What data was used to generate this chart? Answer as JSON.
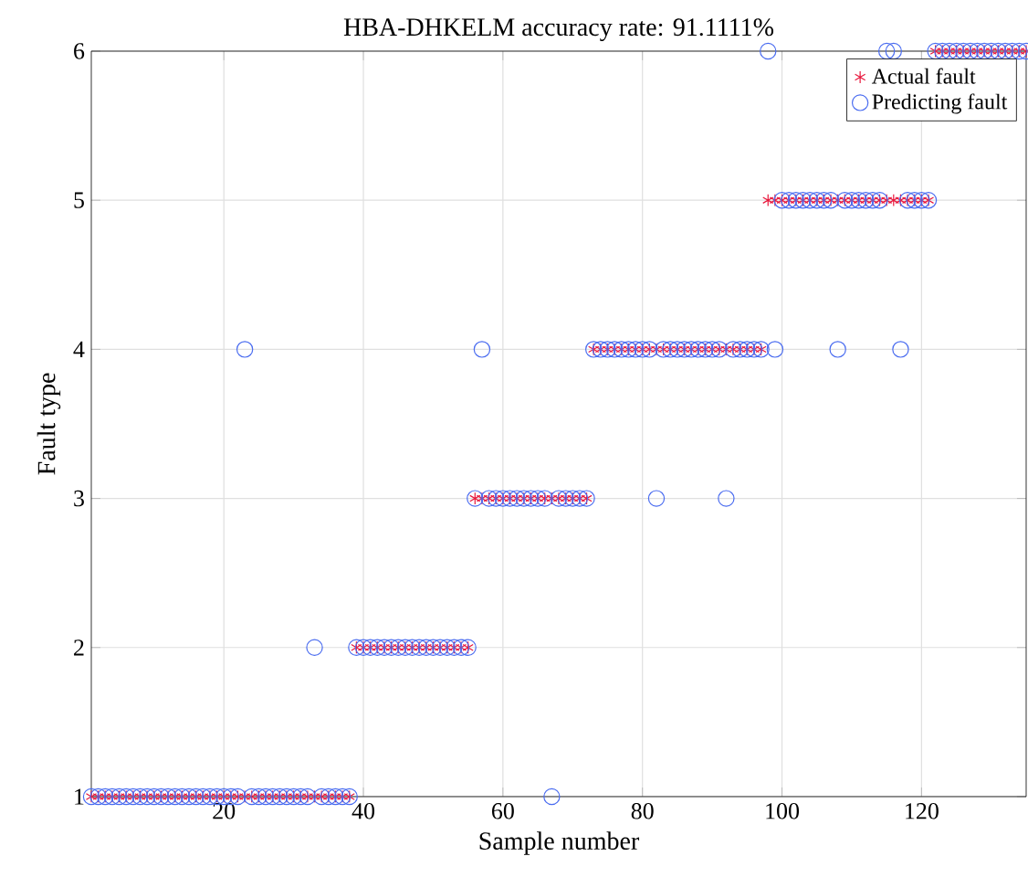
{
  "chart_data": {
    "type": "scatter",
    "title": "HBA-DHKELM  accuracy rate: 91.1111%",
    "xlabel": "Sample number",
    "ylabel": "Fault type",
    "x": [
      1,
      2,
      3,
      4,
      5,
      6,
      7,
      8,
      9,
      10,
      11,
      12,
      13,
      14,
      15,
      16,
      17,
      18,
      19,
      20,
      21,
      22,
      23,
      24,
      25,
      26,
      27,
      28,
      29,
      30,
      31,
      32,
      33,
      34,
      35,
      36,
      37,
      38,
      39,
      40,
      41,
      42,
      43,
      44,
      45,
      46,
      47,
      48,
      49,
      50,
      51,
      52,
      53,
      54,
      55,
      56,
      57,
      58,
      59,
      60,
      61,
      62,
      63,
      64,
      65,
      66,
      67,
      68,
      69,
      70,
      71,
      72,
      73,
      74,
      75,
      76,
      77,
      78,
      79,
      80,
      81,
      82,
      83,
      84,
      85,
      86,
      87,
      88,
      89,
      90,
      91,
      92,
      93,
      94,
      95,
      96,
      97,
      98,
      99,
      100,
      101,
      102,
      103,
      104,
      105,
      106,
      107,
      108,
      109,
      110,
      111,
      112,
      113,
      114,
      115,
      116,
      117,
      118,
      119,
      120,
      121,
      122,
      123,
      124,
      125,
      126,
      127,
      128,
      129,
      130,
      131,
      132,
      133,
      134,
      135
    ],
    "series": [
      {
        "name": "Actual fault",
        "color": "#e8173c",
        "marker": "cross",
        "values": [
          1,
          1,
          1,
          1,
          1,
          1,
          1,
          1,
          1,
          1,
          1,
          1,
          1,
          1,
          1,
          1,
          1,
          1,
          1,
          1,
          1,
          1,
          1,
          1,
          1,
          1,
          1,
          1,
          1,
          1,
          1,
          1,
          1,
          1,
          1,
          1,
          1,
          1,
          2,
          2,
          2,
          2,
          2,
          2,
          2,
          2,
          2,
          2,
          2,
          2,
          2,
          2,
          2,
          2,
          2,
          3,
          3,
          3,
          3,
          3,
          3,
          3,
          3,
          3,
          3,
          3,
          3,
          3,
          3,
          3,
          3,
          3,
          4,
          4,
          4,
          4,
          4,
          4,
          4,
          4,
          4,
          4,
          4,
          4,
          4,
          4,
          4,
          4,
          4,
          4,
          4,
          4,
          4,
          4,
          4,
          4,
          4,
          5,
          5,
          5,
          5,
          5,
          5,
          5,
          5,
          5,
          5,
          5,
          5,
          5,
          5,
          5,
          5,
          5,
          5,
          5,
          5,
          5,
          5,
          5,
          5,
          6,
          6,
          6,
          6,
          6,
          6,
          6,
          6,
          6,
          6,
          6,
          6,
          6,
          6
        ]
      },
      {
        "name": "Predicting fault",
        "color": "#4a6cf0",
        "marker": "circle",
        "values": [
          1,
          1,
          1,
          1,
          1,
          1,
          1,
          1,
          1,
          1,
          1,
          1,
          1,
          1,
          1,
          1,
          1,
          1,
          1,
          1,
          1,
          1,
          4,
          1,
          1,
          1,
          1,
          1,
          1,
          1,
          1,
          1,
          2,
          1,
          1,
          1,
          1,
          1,
          2,
          2,
          2,
          2,
          2,
          2,
          2,
          2,
          2,
          2,
          2,
          2,
          2,
          2,
          2,
          2,
          2,
          3,
          4,
          3,
          3,
          3,
          3,
          3,
          3,
          3,
          3,
          3,
          1,
          3,
          3,
          3,
          3,
          3,
          4,
          4,
          4,
          4,
          4,
          4,
          4,
          4,
          4,
          3,
          4,
          4,
          4,
          4,
          4,
          4,
          4,
          4,
          4,
          3,
          4,
          4,
          4,
          4,
          4,
          6,
          4,
          5,
          5,
          5,
          5,
          5,
          5,
          5,
          5,
          4,
          5,
          5,
          5,
          5,
          5,
          5,
          6,
          6,
          4,
          5,
          5,
          5,
          5,
          6,
          6,
          6,
          6,
          6,
          6,
          6,
          6,
          6,
          6,
          6,
          6,
          6,
          6
        ]
      }
    ],
    "xlim": [
      1,
      135
    ],
    "ylim": [
      1,
      6
    ],
    "xticks": [
      20,
      40,
      60,
      80,
      100,
      120
    ],
    "yticks": [
      1,
      2,
      3,
      4,
      5,
      6
    ],
    "grid": true,
    "legend": "top right"
  }
}
